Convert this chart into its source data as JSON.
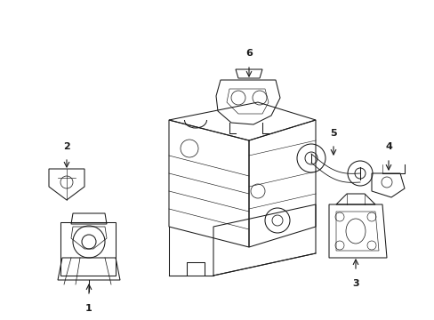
{
  "background_color": "#ffffff",
  "figsize": [
    4.89,
    3.6
  ],
  "dpi": 100,
  "image_data": ""
}
